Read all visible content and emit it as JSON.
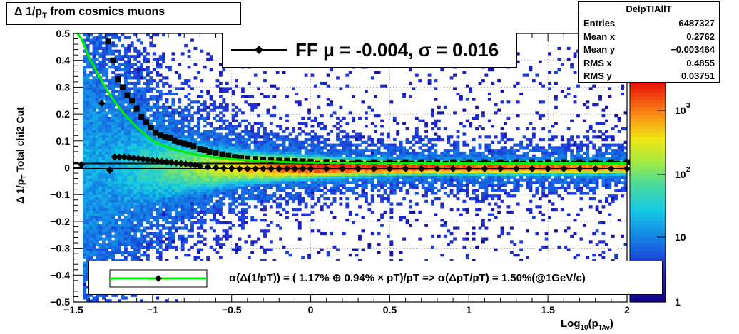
{
  "title": {
    "main": "Δ 1/p",
    "sub": "T",
    "rest": " from cosmics muons"
  },
  "stats": {
    "name": "DelpTIAllT",
    "rows": [
      {
        "label": "Entries",
        "value": "6487327"
      },
      {
        "label": "Mean x",
        "value": "0.2762"
      },
      {
        "label": "Mean y",
        "value": "−0.003464"
      },
      {
        "label": "RMS x",
        "value": "0.4855"
      },
      {
        "label": "RMS y",
        "value": "0.03751"
      }
    ]
  },
  "fit_legend": {
    "text": "FF μ = -0.004, σ =   0.016"
  },
  "resolution_legend": {
    "text": "σ(Δ(1/pT)) = ( 1.17% ⊕  0.94% × pT)/pT => σ(ΔpT/pT) =  1.50%(@1GeV/c)"
  },
  "axes": {
    "ylabel_main": "Δ 1/p",
    "ylabel_sub": "T",
    "ylabel_rest": "   Total chi2 Cut",
    "xlabel_main": "Log",
    "xlabel_sub1": "10",
    "xlabel_mid": "(p",
    "xlabel_sub2": "TAv",
    "xlabel_end": ")"
  },
  "colors": {
    "fit_curve": "#00ee00",
    "markers": "#000000"
  },
  "chart_data": {
    "type": "heatmap",
    "xlim": [
      -1.5,
      2.0
    ],
    "ylim": [
      -0.5,
      0.5
    ],
    "x_ticks": [
      "−1.5",
      "−1",
      "−0.5",
      "0",
      "0.5",
      "1",
      "1.5",
      "2"
    ],
    "y_ticks": [
      "0.5",
      "0.4",
      "0.3",
      "0.2",
      "0.1",
      "0",
      "−0.1",
      "−0.2",
      "−0.3",
      "−0.4",
      "−0.5"
    ],
    "z_scale": "log",
    "z_ticks": [
      "1",
      "10",
      "10",
      "10"
    ],
    "z_tick_exponents": [
      "",
      "",
      "2",
      "3"
    ],
    "grid": true,
    "series": [
      {
        "values_x": [
          -1.28,
          -1.25,
          -1.22,
          -1.19,
          -1.16,
          -1.13,
          -1.1,
          -1.07,
          -1.04,
          -1.01,
          -0.98,
          -0.95,
          -0.92,
          -0.89,
          -0.86,
          -0.83,
          -0.8,
          -0.77,
          -0.74,
          -0.7,
          -0.67,
          -0.64,
          -0.6,
          -0.56,
          -0.52,
          -0.48,
          -0.44,
          -0.4,
          -0.35,
          -0.3,
          -0.25,
          -0.2,
          -0.15,
          -0.1,
          -0.05,
          0.0,
          0.1,
          0.2,
          0.3,
          0.4,
          0.5,
          0.6,
          0.7,
          0.8,
          0.9,
          1.0,
          1.1,
          1.2,
          1.3,
          1.4,
          1.5,
          1.6,
          1.7,
          1.8,
          1.9,
          2.0
        ],
        "values_y": [
          0.47,
          0.4,
          0.33,
          0.3,
          0.27,
          0.25,
          0.22,
          0.19,
          0.17,
          0.15,
          0.13,
          0.12,
          0.115,
          0.11,
          0.1,
          0.095,
          0.09,
          0.085,
          0.08,
          0.07,
          0.065,
          0.06,
          0.055,
          0.05,
          0.045,
          0.04,
          0.037,
          0.034,
          0.032,
          0.03,
          0.028,
          0.027,
          0.026,
          0.025,
          0.024,
          0.023,
          0.022,
          0.021,
          0.021,
          0.021,
          0.021,
          0.021,
          0.021,
          0.021,
          0.021,
          0.021,
          0.021,
          0.021,
          0.021,
          0.021,
          0.021,
          0.021,
          0.021,
          0.021,
          0.021,
          0.021
        ]
      },
      {
        "values_x": [
          -1.45,
          -1.32,
          -1.27,
          -1.24,
          -1.21,
          -1.18,
          -1.15,
          -1.12,
          -1.09,
          -1.06,
          -1.03,
          -1.0,
          -0.97,
          -0.94,
          -0.91,
          -0.88,
          -0.85,
          -0.82,
          -0.79,
          -0.76,
          -0.73,
          -0.7,
          -0.65,
          -0.6,
          -0.55,
          -0.5,
          -0.45,
          -0.4,
          -0.35,
          -0.3,
          -0.25,
          -0.2,
          -0.15,
          -0.1,
          -0.05,
          0.0,
          0.1,
          0.2,
          0.3,
          0.4,
          0.5,
          0.6,
          0.7,
          0.8,
          0.9,
          1.0,
          1.1,
          1.2,
          1.3,
          1.4,
          1.5,
          1.6,
          1.7,
          1.8,
          1.9,
          2.0
        ],
        "values_y": [
          0.012,
          0.24,
          -0.01,
          0.04,
          0.04,
          0.04,
          0.038,
          0.036,
          0.034,
          0.032,
          0.03,
          0.028,
          0.026,
          0.024,
          0.022,
          0.02,
          0.018,
          0.016,
          0.014,
          0.012,
          0.01,
          0.005,
          0.002,
          0.0,
          -0.002,
          -0.003,
          -0.004,
          -0.004,
          -0.004,
          -0.004,
          -0.004,
          -0.004,
          -0.004,
          -0.004,
          -0.004,
          -0.004,
          -0.004,
          -0.004,
          -0.004,
          -0.004,
          -0.004,
          -0.004,
          -0.004,
          -0.004,
          -0.004,
          -0.004,
          -0.004,
          -0.004,
          -0.004,
          -0.004,
          -0.004,
          -0.004,
          -0.004,
          -0.004,
          -0.004,
          -0.004
        ]
      },
      {
        "values_x": [
          -1.5,
          -1.45,
          -1.4,
          -1.35,
          -1.3,
          -1.25,
          -1.2,
          -1.15,
          -1.1,
          -1.05,
          -1.0,
          -0.9,
          -0.8,
          -0.7,
          -0.6,
          -0.5,
          -0.4,
          -0.3,
          -0.2,
          -0.1,
          0.0,
          0.2,
          0.4,
          0.6,
          0.8,
          1.0,
          1.5,
          2.0
        ],
        "values_y": [
          0.56,
          0.48,
          0.41,
          0.355,
          0.3,
          0.255,
          0.215,
          0.18,
          0.15,
          0.125,
          0.1,
          0.075,
          0.058,
          0.046,
          0.038,
          0.032,
          0.028,
          0.025,
          0.022,
          0.02,
          0.019,
          0.018,
          0.017,
          0.017,
          0.016,
          0.016,
          0.016,
          0.016
        ]
      }
    ]
  }
}
